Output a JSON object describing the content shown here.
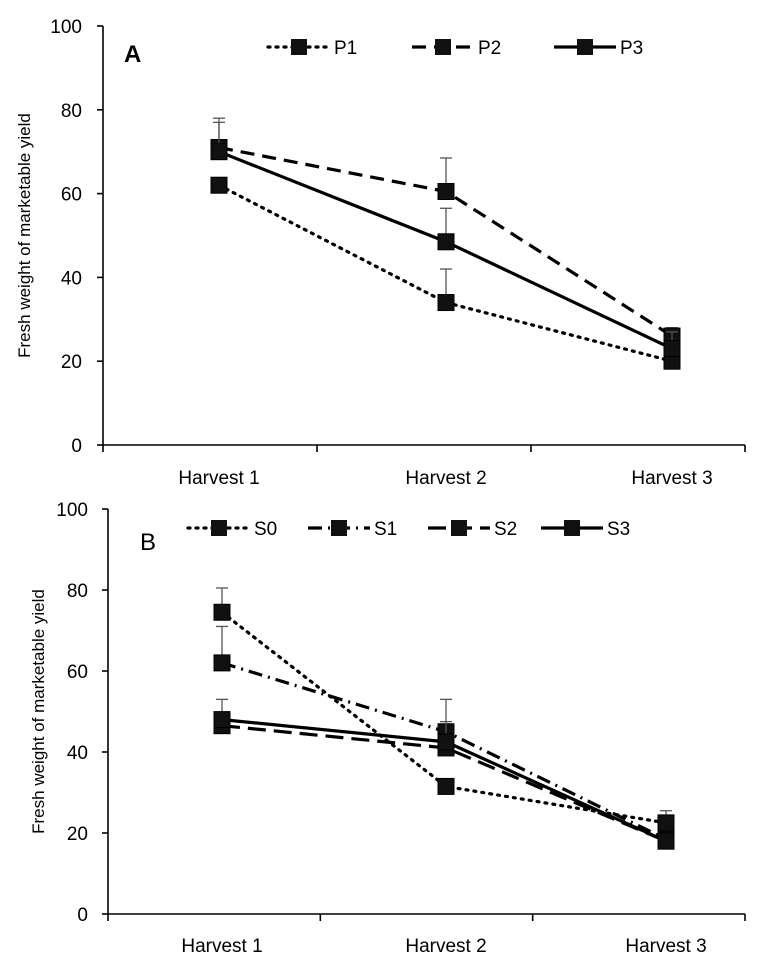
{
  "chart_data": [
    {
      "type": "line",
      "panel_label": "A",
      "panel_label_bold": true,
      "categories": [
        "Harvest 1",
        "Harvest 2",
        "Harvest 3"
      ],
      "ylabel": "Fresh weight  of marketable  yield",
      "xlabel": "",
      "ylim": [
        0,
        100
      ],
      "yticks": [
        0,
        20,
        40,
        60,
        80,
        100
      ],
      "grid": false,
      "legend_position": "top",
      "series": [
        {
          "name": "P1",
          "style": "dotted",
          "values": [
            62,
            34,
            20
          ],
          "errors": [
            null,
            8,
            null
          ]
        },
        {
          "name": "P2",
          "style": "dashed",
          "values": [
            71,
            60.5,
            26
          ],
          "errors": [
            6,
            8,
            2
          ]
        },
        {
          "name": "P3",
          "style": "solid",
          "values": [
            70,
            48.5,
            23
          ],
          "errors": [
            8,
            8,
            4
          ]
        }
      ]
    },
    {
      "type": "line",
      "panel_label": "B",
      "panel_label_bold": false,
      "categories": [
        "Harvest 1",
        "Harvest 2",
        "Harvest 3"
      ],
      "ylabel": "Fresh weight  of marketable  yield",
      "xlabel": "",
      "ylim": [
        0,
        100
      ],
      "yticks": [
        0,
        20,
        40,
        60,
        80,
        100
      ],
      "grid": false,
      "legend_position": "top",
      "series": [
        {
          "name": "S0",
          "style": "dotted",
          "values": [
            74.5,
            31.5,
            22.5
          ],
          "errors": [
            6,
            null,
            3
          ]
        },
        {
          "name": "S1",
          "style": "dashdot",
          "values": [
            62,
            45,
            18.5
          ],
          "errors": [
            9,
            8,
            null
          ]
        },
        {
          "name": "S2",
          "style": "longdash",
          "values": [
            46.5,
            41,
            18
          ],
          "errors": [
            null,
            null,
            null
          ]
        },
        {
          "name": "S3",
          "style": "solid",
          "values": [
            48,
            42.5,
            18
          ],
          "errors": [
            5,
            5,
            null
          ]
        }
      ]
    }
  ]
}
